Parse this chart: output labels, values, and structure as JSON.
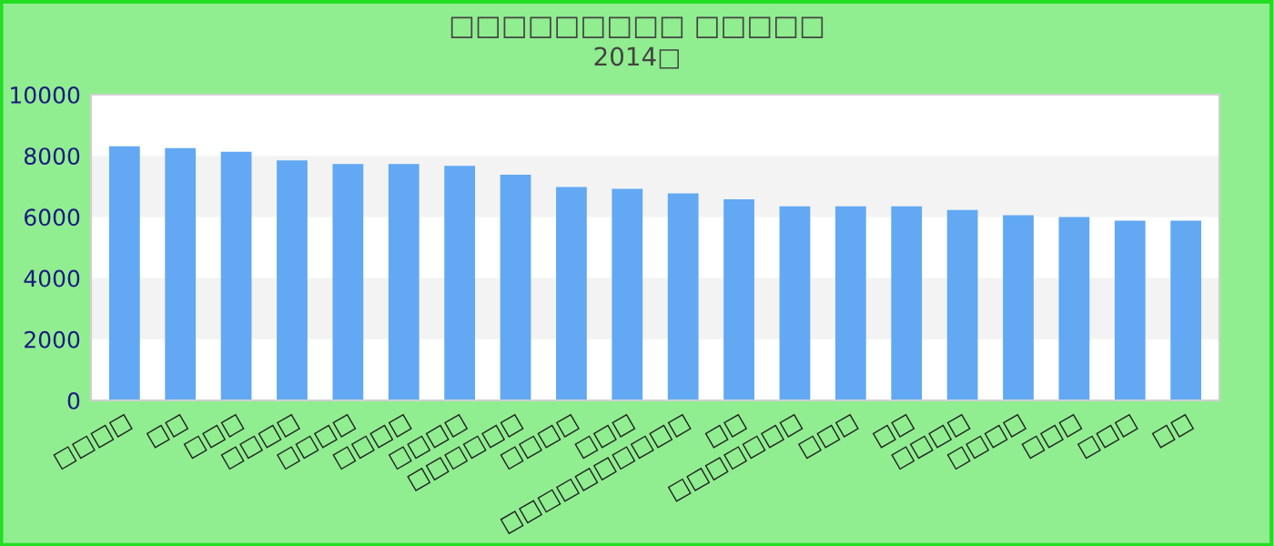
{
  "chart_data": {
    "type": "bar",
    "title": "□□□□□□□□□ □□□□□",
    "subtitle": "2014□",
    "categories": [
      "□□□□",
      "□□",
      "□□□",
      "□□□□",
      "□□□□",
      "□□□□",
      "□□□□",
      "□□□□□□",
      "□□□□",
      "□□□",
      "□□□□□□□□□□",
      "□□",
      "□□□□□□□",
      "□□□",
      "□□",
      "□□□□",
      "□□□□",
      "□□□",
      "□□□",
      "□□"
    ],
    "values": [
      8310,
      8250,
      8130,
      7850,
      7730,
      7730,
      7670,
      7380,
      6980,
      6920,
      6770,
      6580,
      6350,
      6350,
      6350,
      6230,
      6060,
      6000,
      5880,
      5880
    ],
    "color": "#62a8f3",
    "ylim": [
      0,
      10000
    ],
    "yticks": [
      0,
      2000,
      4000,
      6000,
      8000,
      10000
    ],
    "bands": [
      {
        "axis": "y",
        "from": 2000,
        "to": 4000,
        "color": "#f3f3f3"
      },
      {
        "axis": "y",
        "from": 6000,
        "to": 8000,
        "color": "#f3f3f3"
      }
    ]
  }
}
